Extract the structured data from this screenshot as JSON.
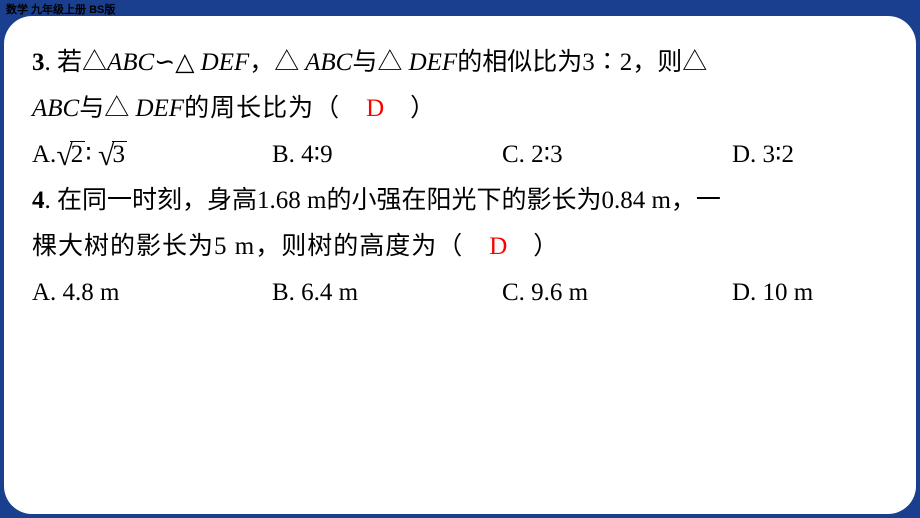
{
  "header": "数学 九年级上册 BS版",
  "q3": {
    "num": "3",
    "part1": ". 若△",
    "abc1": "ABC",
    "sim": "∽",
    "tri2": "△",
    "def1": " DEF",
    "comma1": "，△",
    "abc2": " ABC",
    "with": "与△",
    "def2": " DEF",
    "part2": "的相似比为3∶2，则△",
    "line2a": "ABC",
    "line2b": "与△",
    "def3": " DEF",
    "line2c": "的周长比为（　",
    "answer": "D",
    "line2d": "　）",
    "optA_pre": "A.",
    "optA_r1": "2",
    "optA_colon": "∶",
    "optA_r2": "3",
    "optB": "B. 4∶9",
    "optC": "C. 2∶3",
    "optD": "D. 3∶2"
  },
  "q4": {
    "num": "4",
    "line1": ". 在同一时刻，身高1.68 m的小强在阳光下的影长为0.84 m，一",
    "line2a": "棵大树的影长为5 m，则树的高度为（　",
    "answer": "D",
    "line2b": "　）",
    "optA": "A. 4.8 m",
    "optB": "B. 6.4 m",
    "optC": "C. 9.6 m",
    "optD": "D. 10 m"
  },
  "colors": {
    "page_bg": "#1b3f8f",
    "card_bg": "#ffffff",
    "text": "#000000",
    "answer": "#ff0000"
  }
}
